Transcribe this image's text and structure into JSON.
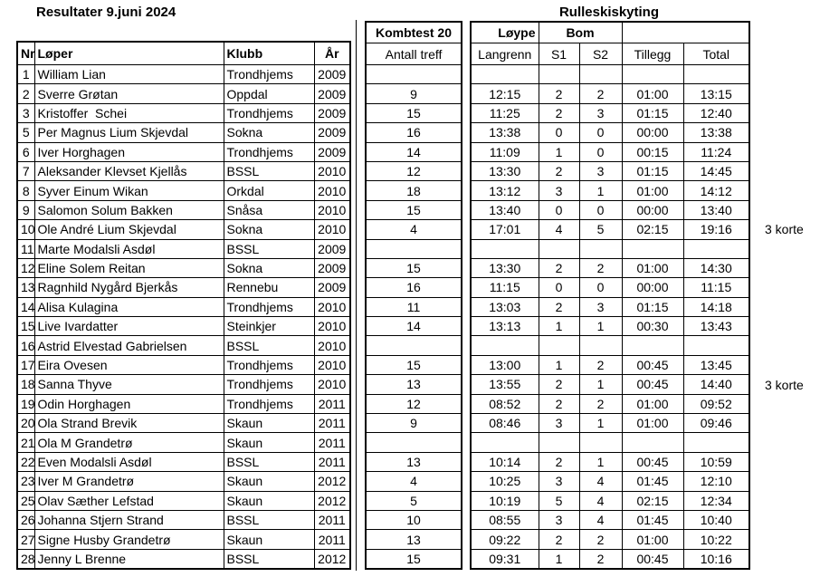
{
  "titles": {
    "left": "Resultater 9.juni 2024",
    "right": "Rulleskiskyting"
  },
  "results_table": {
    "headers": {
      "nr": "Nr",
      "loper": "Løper",
      "klubb": "Klubb",
      "ar": "År"
    }
  },
  "kombtest_table": {
    "title": "Kombtest 20",
    "subtitle": "Antall treff"
  },
  "rulleski_table": {
    "group_loype": "Løype",
    "group_bom": "Bom",
    "col_langrenn": "Langrenn",
    "col_s1": "S1",
    "col_s2": "S2",
    "col_tillegg": "Tillegg",
    "col_total": "Total"
  },
  "rows": [
    {
      "nr": "1",
      "name": "William Lian",
      "club": "Trondhjems",
      "year": "2009",
      "treff": "",
      "langrenn": "",
      "s1": "",
      "s2": "",
      "tillegg": "",
      "total": "",
      "note": ""
    },
    {
      "nr": "2",
      "name": "Sverre Grøtan",
      "club": "Oppdal",
      "year": "2009",
      "treff": "9",
      "langrenn": "12:15",
      "s1": "2",
      "s2": "2",
      "tillegg": "01:00",
      "total": "13:15",
      "note": ""
    },
    {
      "nr": "3",
      "name": "Kristoffer  Schei",
      "club": "Trondhjems",
      "year": "2009",
      "treff": "15",
      "langrenn": "11:25",
      "s1": "2",
      "s2": "3",
      "tillegg": "01:15",
      "total": "12:40",
      "note": ""
    },
    {
      "nr": "5",
      "name": "Per Magnus Lium Skjevdal",
      "club": "Sokna",
      "year": "2009",
      "treff": "16",
      "langrenn": "13:38",
      "s1": "0",
      "s2": "0",
      "tillegg": "00:00",
      "total": "13:38",
      "note": ""
    },
    {
      "nr": "6",
      "name": "Iver Horghagen",
      "club": "Trondhjems",
      "year": "2009",
      "treff": "14",
      "langrenn": "11:09",
      "s1": "1",
      "s2": "0",
      "tillegg": "00:15",
      "total": "11:24",
      "note": ""
    },
    {
      "nr": "7",
      "name": "Aleksander Klevset Kjellås",
      "club": "BSSL",
      "year": "2010",
      "treff": "12",
      "langrenn": "13:30",
      "s1": "2",
      "s2": "3",
      "tillegg": "01:15",
      "total": "14:45",
      "note": ""
    },
    {
      "nr": "8",
      "name": "Syver Einum Wikan",
      "club": "Orkdal",
      "year": "2010",
      "treff": "18",
      "langrenn": "13:12",
      "s1": "3",
      "s2": "1",
      "tillegg": "01:00",
      "total": "14:12",
      "note": ""
    },
    {
      "nr": "9",
      "name": "Salomon Solum Bakken",
      "club": "Snåsa",
      "year": "2010",
      "treff": "15",
      "langrenn": "13:40",
      "s1": "0",
      "s2": "0",
      "tillegg": "00:00",
      "total": "13:40",
      "note": ""
    },
    {
      "nr": "10",
      "name": "Ole André Lium Skjevdal",
      "club": "Sokna",
      "year": "2010",
      "treff": "4",
      "langrenn": "17:01",
      "s1": "4",
      "s2": "5",
      "tillegg": "02:15",
      "total": "19:16",
      "note": "3 korte"
    },
    {
      "nr": "11",
      "name": "Marte Modalsli Asdøl",
      "club": "BSSL",
      "year": "2009",
      "treff": "",
      "langrenn": "",
      "s1": "",
      "s2": "",
      "tillegg": "",
      "total": "",
      "note": ""
    },
    {
      "nr": "12",
      "name": "Eline Solem Reitan",
      "club": "Sokna",
      "year": "2009",
      "treff": "15",
      "langrenn": "13:30",
      "s1": "2",
      "s2": "2",
      "tillegg": "01:00",
      "total": "14:30",
      "note": ""
    },
    {
      "nr": "13",
      "name": "Ragnhild Nygård Bjerkås",
      "club": "Rennebu",
      "year": "2009",
      "treff": "16",
      "langrenn": "11:15",
      "s1": "0",
      "s2": "0",
      "tillegg": "00:00",
      "total": "11:15",
      "note": ""
    },
    {
      "nr": "14",
      "name": "Alisa Kulagina",
      "club": "Trondhjems",
      "year": "2010",
      "treff": "11",
      "langrenn": "13:03",
      "s1": "2",
      "s2": "3",
      "tillegg": "01:15",
      "total": "14:18",
      "note": ""
    },
    {
      "nr": "15",
      "name": "Live Ivardatter",
      "club": "Steinkjer",
      "year": "2010",
      "treff": "14",
      "langrenn": "13:13",
      "s1": "1",
      "s2": "1",
      "tillegg": "00:30",
      "total": "13:43",
      "note": ""
    },
    {
      "nr": "16",
      "name": "Astrid Elvestad Gabrielsen",
      "club": "BSSL",
      "year": "2010",
      "treff": "",
      "langrenn": "",
      "s1": "",
      "s2": "",
      "tillegg": "",
      "total": "",
      "note": ""
    },
    {
      "nr": "17",
      "name": "Eira Ovesen",
      "club": "Trondhjems",
      "year": "2010",
      "treff": "15",
      "langrenn": "13:00",
      "s1": "1",
      "s2": "2",
      "tillegg": "00:45",
      "total": "13:45",
      "note": ""
    },
    {
      "nr": "18",
      "name": "Sanna Thyve",
      "club": "Trondhjems",
      "year": "2010",
      "treff": "13",
      "langrenn": "13:55",
      "s1": "2",
      "s2": "1",
      "tillegg": "00:45",
      "total": "14:40",
      "note": "3 korte"
    },
    {
      "nr": "19",
      "name": "Odin Horghagen",
      "club": "Trondhjems",
      "year": "2011",
      "treff": "12",
      "langrenn": "08:52",
      "s1": "2",
      "s2": "2",
      "tillegg": "01:00",
      "total": "09:52",
      "note": ""
    },
    {
      "nr": "20",
      "name": "Ola Strand Brevik",
      "club": "Skaun",
      "year": "2011",
      "treff": "9",
      "langrenn": "08:46",
      "s1": "3",
      "s2": "1",
      "tillegg": "01:00",
      "total": "09:46",
      "note": ""
    },
    {
      "nr": "21",
      "name": "Ola M Grandetrø",
      "club": "Skaun",
      "year": "2011",
      "treff": "",
      "langrenn": "",
      "s1": "",
      "s2": "",
      "tillegg": "",
      "total": "",
      "note": ""
    },
    {
      "nr": "22",
      "name": "Even Modalsli Asdøl",
      "club": "BSSL",
      "year": "2011",
      "treff": "13",
      "langrenn": "10:14",
      "s1": "2",
      "s2": "1",
      "tillegg": "00:45",
      "total": "10:59",
      "note": ""
    },
    {
      "nr": "23",
      "name": "Iver M Grandetrø",
      "club": "Skaun",
      "year": "2012",
      "treff": "4",
      "langrenn": "10:25",
      "s1": "3",
      "s2": "4",
      "tillegg": "01:45",
      "total": "12:10",
      "note": ""
    },
    {
      "nr": "25",
      "name": "Olav Sæther Lefstad",
      "club": "Skaun",
      "year": "2012",
      "treff": "5",
      "langrenn": "10:19",
      "s1": "5",
      "s2": "4",
      "tillegg": "02:15",
      "total": "12:34",
      "note": ""
    },
    {
      "nr": "26",
      "name": "Johanna Stjern Strand",
      "club": "BSSL",
      "year": "2011",
      "treff": "10",
      "langrenn": "08:55",
      "s1": "3",
      "s2": "4",
      "tillegg": "01:45",
      "total": "10:40",
      "note": ""
    },
    {
      "nr": "27",
      "name": "Signe Husby Grandetrø",
      "club": "Skaun",
      "year": "2011",
      "treff": "13",
      "langrenn": "09:22",
      "s1": "2",
      "s2": "2",
      "tillegg": "01:00",
      "total": "10:22",
      "note": ""
    },
    {
      "nr": "28",
      "name": "Jenny L Brenne",
      "club": "BSSL",
      "year": "2012",
      "treff": "15",
      "langrenn": "09:31",
      "s1": "1",
      "s2": "2",
      "tillegg": "00:45",
      "total": "10:16",
      "note": ""
    }
  ]
}
